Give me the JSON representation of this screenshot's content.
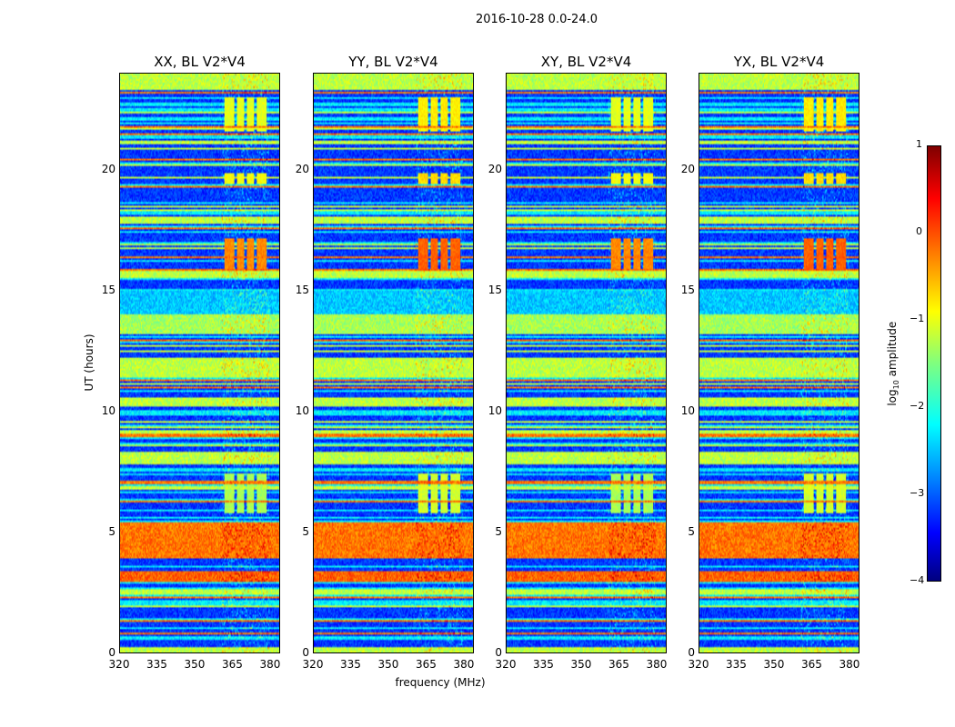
{
  "chart_data": {
    "type": "heatmap",
    "suptitle": "2016-10-28 0.0-24.0",
    "panels": [
      {
        "title": "XX, BL V2*V4"
      },
      {
        "title": "YY, BL V2*V4"
      },
      {
        "title": "XY, BL V2*V4"
      },
      {
        "title": "YX, BL V2*V4"
      }
    ],
    "xlabel": "frequency (MHz)",
    "ylabel": "UT (hours)",
    "xlim": [
      320,
      384
    ],
    "ylim": [
      0,
      24
    ],
    "xticks": [
      "320",
      "335",
      "350",
      "365",
      "380"
    ],
    "yticks": [
      "0",
      "5",
      "10",
      "15",
      "20"
    ],
    "colorbar": {
      "label": "log10 amplitude",
      "label_main": "log",
      "label_sub": "10",
      "label_rest": " amplitude",
      "range": [
        -4,
        1
      ],
      "ticks": [
        "1",
        "0",
        "−1",
        "−2",
        "−3",
        "−4"
      ],
      "colormap": "jet"
    },
    "rfi_channels_mhz": [
      [
        362,
        366
      ],
      [
        367,
        370
      ],
      [
        371,
        374
      ],
      [
        375,
        379
      ]
    ],
    "time_bands": [
      {
        "start": 0.0,
        "end": 0.15,
        "level": -1.2
      },
      {
        "start": 2.9,
        "end": 3.4,
        "level": -0.1
      },
      {
        "start": 3.9,
        "end": 5.4,
        "level": -0.2
      },
      {
        "start": 7.9,
        "end": 8.3,
        "level": -1.2
      },
      {
        "start": 10.2,
        "end": 10.6,
        "level": -1.2
      },
      {
        "start": 11.5,
        "end": 12.2,
        "level": -1.2
      },
      {
        "start": 12.9,
        "end": 13.0,
        "level": -0.1
      },
      {
        "start": 13.2,
        "end": 14.0,
        "level": -1.3
      },
      {
        "start": 14.0,
        "end": 15.0,
        "level": -2.4
      },
      {
        "start": 17.8,
        "end": 18.1,
        "level": -1.2
      },
      {
        "start": 23.3,
        "end": 24.0,
        "level": -1.2
      }
    ],
    "rfi_periods": [
      {
        "start": 5.8,
        "end": 7.4,
        "level": -1.3
      },
      {
        "start": 15.8,
        "end": 17.2,
        "level": -0.3
      },
      {
        "start": 19.4,
        "end": 19.9,
        "level": -0.9
      },
      {
        "start": 21.6,
        "end": 23.0,
        "level": -1.0
      }
    ]
  }
}
